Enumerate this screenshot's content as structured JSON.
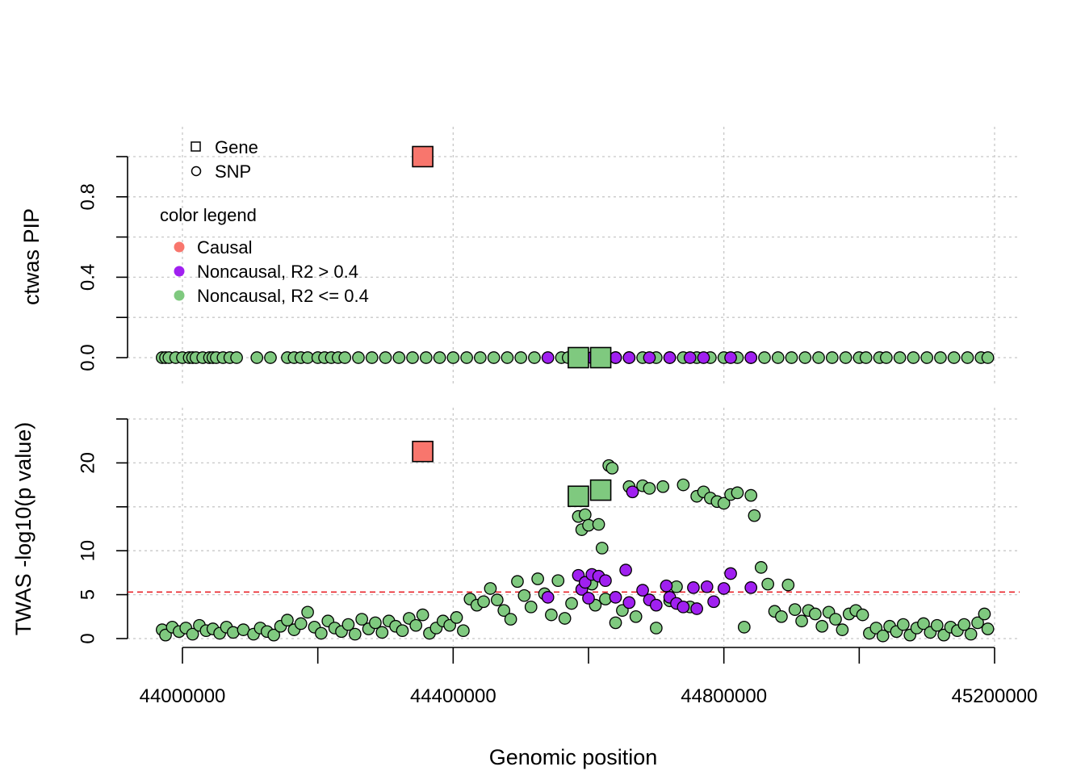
{
  "chart_data": {
    "type": "scatter",
    "xlabel": "Genomic position",
    "x_ticks": [
      44000000,
      44400000,
      44800000,
      45200000
    ],
    "x_tick_labels": [
      "44000000",
      "44400000",
      "44800000",
      "45200000"
    ],
    "xlim": [
      43920000,
      45240000
    ],
    "colors": {
      "causal": "#F8766D",
      "noncausal_high_r2": "#A020F0",
      "noncausal_low_r2": "#7FC97F"
    },
    "legend": {
      "shape_entries": [
        {
          "shape": "square",
          "label": "Gene"
        },
        {
          "shape": "circle",
          "label": "SNP"
        }
      ],
      "color_title": "color legend",
      "color_entries": [
        {
          "key": "causal",
          "label": "Causal"
        },
        {
          "key": "noncausal_high_r2",
          "label": "Noncausal, R2 > 0.4"
        },
        {
          "key": "noncausal_low_r2",
          "label": "Noncausal, R2 <= 0.4"
        }
      ]
    },
    "panels": [
      {
        "id": "pip",
        "ylabel": "ctwas PIP",
        "ylim": [
          0,
          1
        ],
        "y_ticks": [
          0,
          0.2,
          0.4,
          0.6,
          0.8,
          1.0
        ],
        "y_tick_labels": [
          "0.0",
          "",
          "0.4",
          "",
          "0.8",
          ""
        ],
        "genes": [
          {
            "x": 44355000,
            "y": 1.0,
            "cls": "causal"
          },
          {
            "x": 44585000,
            "y": 0.0,
            "cls": "noncausal_low_r2"
          },
          {
            "x": 44618000,
            "y": 0.0,
            "cls": "noncausal_low_r2"
          }
        ],
        "snp_series": [
          {
            "cls": "noncausal_low_r2",
            "y": 0.0,
            "x": [
              43970000,
              43975000,
              43980000,
              43990000,
              44000000,
              44010000,
              44015000,
              44020000,
              44030000,
              44040000,
              44045000,
              44050000,
              44060000,
              44070000,
              44080000,
              44110000,
              44130000,
              44155000,
              44165000,
              44175000,
              44185000,
              44200000,
              44210000,
              44220000,
              44230000,
              44240000,
              44260000,
              44280000,
              44300000,
              44320000,
              44340000,
              44360000,
              44380000,
              44400000,
              44420000,
              44440000,
              44460000,
              44480000,
              44500000,
              44520000,
              44560000,
              44570000,
              44640000,
              44660000,
              44680000,
              44700000,
              44720000,
              44740000,
              44760000,
              44780000,
              44800000,
              44820000,
              44840000,
              44860000,
              44880000,
              44900000,
              44920000,
              44940000,
              44960000,
              44980000,
              45000000,
              45010000,
              45030000,
              45040000,
              45060000,
              45080000,
              45100000,
              45120000,
              45140000,
              45160000,
              45180000,
              45190000
            ]
          },
          {
            "cls": "noncausal_high_r2",
            "y": 0.0,
            "x": [
              44540000,
              44605000,
              44640000,
              44660000,
              44690000,
              44720000,
              44750000,
              44770000,
              44810000,
              44840000
            ]
          }
        ]
      },
      {
        "id": "twas",
        "ylabel": "TWAS -log10(p value)",
        "ylim": [
          0,
          25
        ],
        "y_ticks": [
          0,
          5,
          10,
          15,
          20,
          25
        ],
        "y_tick_labels": [
          "0",
          "5",
          "10",
          "",
          "20",
          ""
        ],
        "threshold": 5.3,
        "genes": [
          {
            "x": 44355000,
            "y": 21.3,
            "cls": "causal"
          },
          {
            "x": 44585000,
            "y": 16.2,
            "cls": "noncausal_low_r2"
          },
          {
            "x": 44618000,
            "y": 16.9,
            "cls": "noncausal_low_r2"
          }
        ],
        "snp_series": [
          {
            "cls": "noncausal_low_r2",
            "points": [
              [
                43970000,
                1.0
              ],
              [
                43975000,
                0.4
              ],
              [
                43985000,
                1.3
              ],
              [
                43995000,
                0.8
              ],
              [
                44005000,
                1.2
              ],
              [
                44015000,
                0.5
              ],
              [
                44025000,
                1.5
              ],
              [
                44035000,
                0.9
              ],
              [
                44045000,
                1.1
              ],
              [
                44055000,
                0.6
              ],
              [
                44065000,
                1.3
              ],
              [
                44075000,
                0.7
              ],
              [
                44090000,
                1.0
              ],
              [
                44105000,
                0.5
              ],
              [
                44115000,
                1.2
              ],
              [
                44125000,
                0.8
              ],
              [
                44135000,
                0.4
              ],
              [
                44145000,
                1.4
              ],
              [
                44155000,
                2.1
              ],
              [
                44165000,
                1.0
              ],
              [
                44175000,
                1.7
              ],
              [
                44185000,
                3.0
              ],
              [
                44195000,
                1.3
              ],
              [
                44205000,
                0.6
              ],
              [
                44215000,
                2.0
              ],
              [
                44225000,
                1.2
              ],
              [
                44235000,
                0.8
              ],
              [
                44245000,
                1.6
              ],
              [
                44255000,
                0.5
              ],
              [
                44265000,
                2.2
              ],
              [
                44275000,
                1.1
              ],
              [
                44285000,
                1.8
              ],
              [
                44295000,
                0.7
              ],
              [
                44305000,
                2.0
              ],
              [
                44315000,
                1.4
              ],
              [
                44325000,
                0.9
              ],
              [
                44335000,
                2.3
              ],
              [
                44345000,
                1.5
              ],
              [
                44355000,
                2.7
              ],
              [
                44365000,
                0.6
              ],
              [
                44375000,
                1.2
              ],
              [
                44385000,
                2.0
              ],
              [
                44395000,
                1.5
              ],
              [
                44405000,
                2.4
              ],
              [
                44415000,
                0.9
              ],
              [
                44425000,
                4.5
              ],
              [
                44435000,
                3.8
              ],
              [
                44445000,
                4.2
              ],
              [
                44455000,
                5.7
              ],
              [
                44465000,
                4.4
              ],
              [
                44475000,
                3.2
              ],
              [
                44485000,
                2.2
              ],
              [
                44495000,
                6.5
              ],
              [
                44505000,
                4.9
              ],
              [
                44515000,
                3.6
              ],
              [
                44525000,
                6.8
              ],
              [
                44535000,
                5.1
              ],
              [
                44545000,
                2.7
              ],
              [
                44555000,
                6.6
              ],
              [
                44565000,
                2.3
              ],
              [
                44575000,
                4.0
              ],
              [
                44585000,
                13.9
              ],
              [
                44590000,
                12.4
              ],
              [
                44595000,
                14.1
              ],
              [
                44600000,
                12.9
              ],
              [
                44605000,
                6.2
              ],
              [
                44610000,
                3.8
              ],
              [
                44615000,
                13.0
              ],
              [
                44620000,
                10.3
              ],
              [
                44625000,
                4.5
              ],
              [
                44630000,
                19.7
              ],
              [
                44635000,
                19.4
              ],
              [
                44640000,
                1.8
              ],
              [
                44650000,
                3.2
              ],
              [
                44660000,
                17.3
              ],
              [
                44670000,
                2.5
              ],
              [
                44680000,
                17.4
              ],
              [
                44690000,
                17.1
              ],
              [
                44700000,
                1.2
              ],
              [
                44710000,
                17.3
              ],
              [
                44720000,
                4.3
              ],
              [
                44730000,
                5.9
              ],
              [
                44740000,
                17.5
              ],
              [
                44750000,
                3.6
              ],
              [
                44760000,
                16.2
              ],
              [
                44770000,
                16.7
              ],
              [
                44780000,
                16.0
              ],
              [
                44790000,
                15.6
              ],
              [
                44800000,
                15.4
              ],
              [
                44810000,
                16.4
              ],
              [
                44820000,
                16.6
              ],
              [
                44830000,
                1.3
              ],
              [
                44840000,
                16.3
              ],
              [
                44845000,
                14.0
              ],
              [
                44855000,
                8.1
              ],
              [
                44865000,
                6.2
              ],
              [
                44875000,
                3.1
              ],
              [
                44885000,
                2.5
              ],
              [
                44895000,
                6.1
              ],
              [
                44905000,
                3.3
              ],
              [
                44915000,
                2.0
              ],
              [
                44925000,
                3.2
              ],
              [
                44935000,
                2.8
              ],
              [
                44945000,
                1.4
              ],
              [
                44955000,
                3.0
              ],
              [
                44965000,
                2.2
              ],
              [
                44975000,
                1.0
              ],
              [
                44985000,
                2.8
              ],
              [
                44995000,
                3.2
              ],
              [
                45005000,
                2.7
              ],
              [
                45015000,
                0.6
              ],
              [
                45025000,
                1.2
              ],
              [
                45035000,
                0.3
              ],
              [
                45045000,
                1.4
              ],
              [
                45055000,
                0.8
              ],
              [
                45065000,
                1.6
              ],
              [
                45075000,
                0.4
              ],
              [
                45085000,
                1.2
              ],
              [
                45095000,
                1.7
              ],
              [
                45105000,
                0.7
              ],
              [
                45115000,
                1.5
              ],
              [
                45125000,
                0.4
              ],
              [
                45135000,
                1.3
              ],
              [
                45145000,
                0.9
              ],
              [
                45155000,
                1.6
              ],
              [
                45165000,
                0.5
              ],
              [
                45175000,
                1.8
              ],
              [
                45185000,
                2.8
              ],
              [
                45190000,
                1.1
              ]
            ]
          },
          {
            "cls": "noncausal_high_r2",
            "points": [
              [
                44540000,
                4.7
              ],
              [
                44585000,
                7.2
              ],
              [
                44590000,
                5.6
              ],
              [
                44595000,
                6.4
              ],
              [
                44600000,
                4.6
              ],
              [
                44605000,
                7.3
              ],
              [
                44615000,
                7.1
              ],
              [
                44625000,
                6.6
              ],
              [
                44640000,
                4.7
              ],
              [
                44655000,
                7.8
              ],
              [
                44660000,
                4.1
              ],
              [
                44665000,
                16.7
              ],
              [
                44680000,
                5.5
              ],
              [
                44690000,
                4.4
              ],
              [
                44700000,
                3.8
              ],
              [
                44715000,
                6.0
              ],
              [
                44720000,
                4.7
              ],
              [
                44730000,
                4.0
              ],
              [
                44740000,
                3.6
              ],
              [
                44755000,
                5.8
              ],
              [
                44760000,
                3.4
              ],
              [
                44775000,
                5.9
              ],
              [
                44785000,
                4.2
              ],
              [
                44800000,
                5.7
              ],
              [
                44810000,
                7.4
              ],
              [
                44840000,
                5.8
              ]
            ]
          }
        ]
      }
    ]
  }
}
